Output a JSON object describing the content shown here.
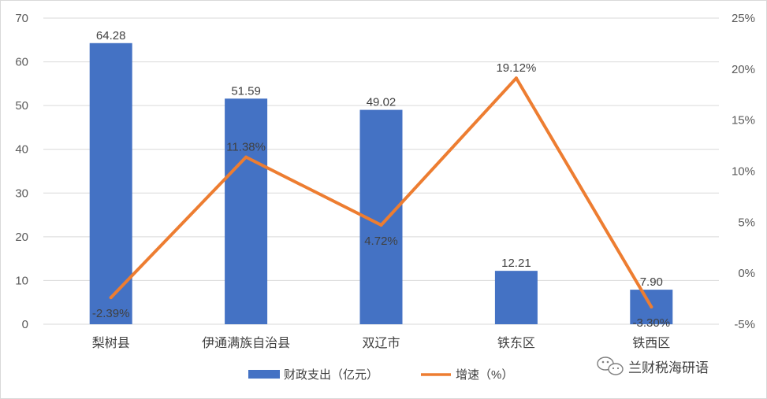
{
  "chart_data": {
    "type": "bar",
    "categories": [
      "梨树县",
      "伊通满族自治县",
      "双辽市",
      "铁东区",
      "铁西区"
    ],
    "series": [
      {
        "name": "财政支出（亿元）",
        "type": "bar",
        "axis": "left",
        "color": "#4472C4",
        "values": [
          64.28,
          51.59,
          49.02,
          12.21,
          7.9
        ],
        "labels": [
          "64.28",
          "51.59",
          "49.02",
          "12.21",
          "7.90"
        ]
      },
      {
        "name": "增速（%）",
        "type": "line",
        "axis": "right",
        "color": "#ED7D31",
        "values": [
          -2.39,
          11.38,
          4.72,
          19.12,
          -3.3
        ],
        "labels": [
          "-2.39%",
          "11.38%",
          "4.72%",
          "19.12%",
          "-3.30%"
        ]
      }
    ],
    "y_left": {
      "ylim": [
        0,
        70
      ],
      "ticks": [
        "0",
        "10",
        "20",
        "30",
        "40",
        "50",
        "60",
        "70"
      ]
    },
    "y_right": {
      "ylim": [
        -5,
        25
      ],
      "ticks": [
        "-5%",
        "0%",
        "5%",
        "10%",
        "15%",
        "20%",
        "25%"
      ]
    },
    "legend_position": "bottom",
    "grid": true
  },
  "watermark": {
    "text": "兰财税海研语",
    "icon": "wechat-icon"
  }
}
